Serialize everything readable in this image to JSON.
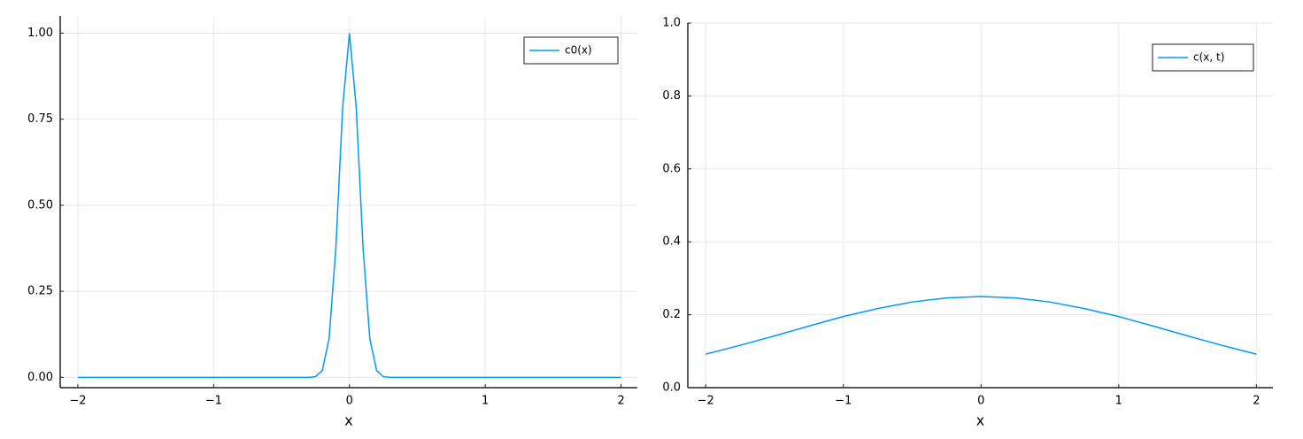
{
  "chart_data": [
    {
      "type": "line",
      "xlabel": "x",
      "x": [
        -2,
        -1,
        -0.5,
        -0.3,
        -0.25,
        -0.2,
        -0.15,
        -0.1,
        -0.05,
        0,
        0.05,
        0.1,
        0.15,
        0.2,
        0.25,
        0.3,
        0.5,
        1,
        2
      ],
      "series": [
        {
          "name": "c0(x)",
          "color": "#009af9",
          "values": [
            0,
            0,
            0,
            0,
            0.002,
            0.02,
            0.112,
            0.377,
            0.784,
            1,
            0.784,
            0.377,
            0.112,
            0.02,
            0.002,
            0,
            0,
            0,
            0
          ]
        }
      ],
      "xlim": [
        -2.13,
        2.12
      ],
      "ylim": [
        -0.03,
        1.05
      ],
      "xticks": [
        {
          "value": -2,
          "label": "−2"
        },
        {
          "value": -1,
          "label": "−1"
        },
        0,
        1,
        2
      ],
      "yticks": [
        {
          "value": 0,
          "label": "0.00"
        },
        {
          "value": 0.25,
          "label": "0.25"
        },
        {
          "value": 0.5,
          "label": "0.50"
        },
        {
          "value": 0.75,
          "label": "0.75"
        },
        {
          "value": 1,
          "label": "1.00"
        }
      ],
      "grid": true,
      "legend": "top-right"
    },
    {
      "type": "line",
      "xlabel": "x",
      "x": [
        -2,
        -1.75,
        -1.5,
        -1.25,
        -1,
        -0.75,
        -0.5,
        -0.25,
        0,
        0.25,
        0.5,
        0.75,
        1,
        1.25,
        1.5,
        1.75,
        2
      ],
      "series": [
        {
          "name": "c(x, t)",
          "color": "#009af9",
          "values": [
            0.092,
            0.116,
            0.142,
            0.169,
            0.195,
            0.217,
            0.235,
            0.246,
            0.25,
            0.246,
            0.235,
            0.217,
            0.195,
            0.169,
            0.142,
            0.116,
            0.092
          ]
        }
      ],
      "xlim": [
        -2.13,
        2.12
      ],
      "ylim": [
        0,
        1
      ],
      "xticks": [
        {
          "value": -2,
          "label": "−2"
        },
        {
          "value": -1,
          "label": "−1"
        },
        0,
        1,
        2
      ],
      "yticks": [
        {
          "value": 0,
          "label": "0.0"
        },
        {
          "value": 0.2,
          "label": "0.2"
        },
        {
          "value": 0.4,
          "label": "0.4"
        },
        {
          "value": 0.6,
          "label": "0.6"
        },
        {
          "value": 0.8,
          "label": "0.8"
        },
        {
          "value": 1,
          "label": "1.0"
        }
      ],
      "grid": true,
      "legend": "top-right"
    }
  ]
}
